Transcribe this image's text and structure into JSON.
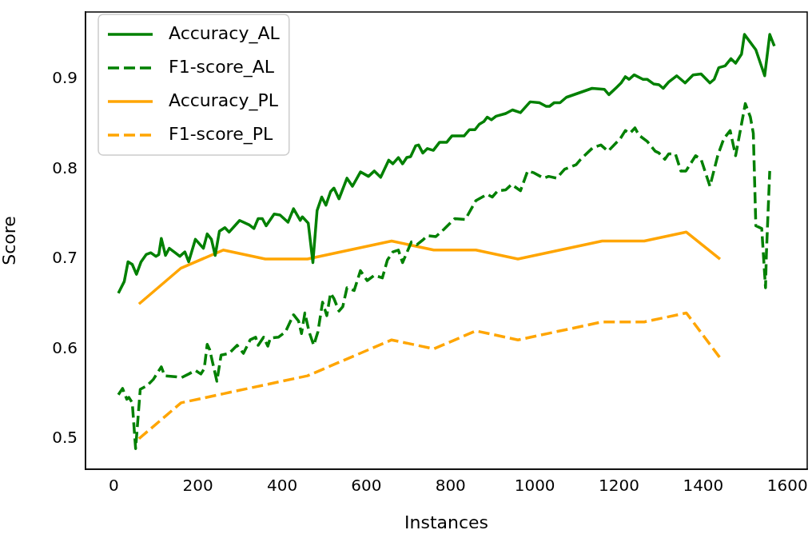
{
  "chart_data": {
    "type": "line",
    "xlabel": "Instances",
    "ylabel": "Score",
    "xlim": [
      -67,
      1647
    ],
    "ylim": [
      0.466,
      0.975
    ],
    "xticks": [
      0,
      200,
      400,
      600,
      800,
      1000,
      1200,
      1400,
      1600
    ],
    "yticks": [
      0.5,
      0.6,
      0.7,
      0.8,
      0.9
    ],
    "grid": false,
    "legend": "top left",
    "marker": "none",
    "series": [
      {
        "name": "Accuracy_AL",
        "color": "#008000",
        "line_style": "solid",
        "x": [
          11,
          25,
          34,
          44,
          54,
          65,
          77,
          88,
          100,
          107,
          113,
          123,
          132,
          146,
          157,
          169,
          178,
          194,
          213,
          222,
          232,
          241,
          251,
          264,
          274,
          299,
          322,
          333,
          343,
          353,
          362,
          381,
          395,
          414,
          427,
          443,
          448,
          462,
          473,
          483,
          494,
          504,
          515,
          523,
          535,
          554,
          567,
          586,
          605,
          619,
          634,
          653,
          663,
          676,
          686,
          696,
          705,
          717,
          724,
          734,
          745,
          759,
          774,
          791,
          803,
          832,
          845,
          858,
          868,
          879,
          887,
          897,
          908,
          931,
          947,
          966,
          989,
          1011,
          1027,
          1035,
          1046,
          1060,
          1075,
          1136,
          1165,
          1176,
          1194,
          1205,
          1215,
          1224,
          1236,
          1257,
          1267,
          1282,
          1295,
          1305,
          1318,
          1337,
          1357,
          1376,
          1395,
          1416,
          1426,
          1437,
          1452,
          1466,
          1477,
          1491,
          1498,
          1525,
          1546,
          1558,
          1569
        ],
        "values": [
          0.662,
          0.675,
          0.697,
          0.694,
          0.683,
          0.697,
          0.705,
          0.707,
          0.703,
          0.705,
          0.723,
          0.704,
          0.712,
          0.707,
          0.703,
          0.708,
          0.697,
          0.722,
          0.712,
          0.728,
          0.722,
          0.704,
          0.731,
          0.735,
          0.73,
          0.743,
          0.738,
          0.734,
          0.745,
          0.745,
          0.737,
          0.75,
          0.749,
          0.741,
          0.756,
          0.743,
          0.747,
          0.74,
          0.696,
          0.754,
          0.769,
          0.76,
          0.775,
          0.779,
          0.767,
          0.79,
          0.781,
          0.797,
          0.792,
          0.798,
          0.791,
          0.81,
          0.806,
          0.813,
          0.806,
          0.813,
          0.814,
          0.826,
          0.827,
          0.818,
          0.823,
          0.821,
          0.83,
          0.83,
          0.837,
          0.837,
          0.844,
          0.844,
          0.85,
          0.853,
          0.858,
          0.855,
          0.859,
          0.862,
          0.866,
          0.863,
          0.875,
          0.874,
          0.87,
          0.87,
          0.874,
          0.874,
          0.88,
          0.89,
          0.889,
          0.883,
          0.891,
          0.896,
          0.903,
          0.9,
          0.905,
          0.9,
          0.9,
          0.895,
          0.894,
          0.89,
          0.897,
          0.904,
          0.896,
          0.905,
          0.906,
          0.896,
          0.9,
          0.913,
          0.915,
          0.923,
          0.918,
          0.928,
          0.95,
          0.933,
          0.904,
          0.95,
          0.937
        ]
      },
      {
        "name": "F1-score_AL",
        "color": "#008000",
        "line_style": "dashed",
        "x": [
          11,
          21,
          31,
          36,
          44,
          52,
          63,
          79,
          94,
          113,
          121,
          146,
          161,
          178,
          194,
          207,
          215,
          222,
          228,
          245,
          255,
          274,
          293,
          308,
          324,
          337,
          343,
          356,
          366,
          372,
          391,
          408,
          427,
          439,
          446,
          454,
          464,
          475,
          485,
          496,
          506,
          515,
          523,
          535,
          544,
          554,
          571,
          586,
          602,
          619,
          638,
          650,
          663,
          676,
          686,
          707,
          720,
          736,
          745,
          765,
          784,
          810,
          835,
          860,
          887,
          899,
          912,
          931,
          945,
          966,
          983,
          998,
          1021,
          1033,
          1052,
          1071,
          1098,
          1109,
          1138,
          1157,
          1174,
          1203,
          1215,
          1226,
          1238,
          1247,
          1267,
          1286,
          1295,
          1309,
          1318,
          1334,
          1347,
          1359,
          1382,
          1395,
          1416,
          1435,
          1449,
          1464,
          1477,
          1500,
          1512,
          1519,
          1525,
          1539,
          1548,
          1550,
          1558
        ],
        "values": [
          0.549,
          0.556,
          0.544,
          0.546,
          0.54,
          0.489,
          0.555,
          0.559,
          0.566,
          0.58,
          0.57,
          0.569,
          0.568,
          0.572,
          0.576,
          0.572,
          0.578,
          0.605,
          0.599,
          0.564,
          0.593,
          0.595,
          0.604,
          0.595,
          0.61,
          0.613,
          0.604,
          0.613,
          0.603,
          0.612,
          0.613,
          0.619,
          0.638,
          0.631,
          0.617,
          0.64,
          0.619,
          0.604,
          0.619,
          0.652,
          0.637,
          0.662,
          0.656,
          0.642,
          0.647,
          0.668,
          0.665,
          0.687,
          0.676,
          0.682,
          0.679,
          0.699,
          0.708,
          0.71,
          0.696,
          0.719,
          0.716,
          0.722,
          0.726,
          0.725,
          0.733,
          0.745,
          0.744,
          0.765,
          0.772,
          0.769,
          0.776,
          0.777,
          0.783,
          0.776,
          0.798,
          0.796,
          0.79,
          0.792,
          0.79,
          0.8,
          0.805,
          0.811,
          0.824,
          0.827,
          0.82,
          0.834,
          0.843,
          0.84,
          0.846,
          0.838,
          0.831,
          0.82,
          0.818,
          0.811,
          0.817,
          0.817,
          0.798,
          0.798,
          0.815,
          0.811,
          0.781,
          0.816,
          0.834,
          0.843,
          0.815,
          0.873,
          0.858,
          0.84,
          0.737,
          0.734,
          0.668,
          0.705,
          0.798
        ]
      },
      {
        "name": "Accuracy_PL",
        "color": "#ffa500",
        "line_style": "solid",
        "x": [
          60,
          160,
          260,
          360,
          460,
          660,
          760,
          860,
          960,
          1160,
          1260,
          1360,
          1440
        ],
        "values": [
          0.65,
          0.69,
          0.71,
          0.7,
          0.7,
          0.72,
          0.71,
          0.71,
          0.7,
          0.72,
          0.72,
          0.73,
          0.7
        ]
      },
      {
        "name": "F1-score_PL",
        "color": "#ffa500",
        "line_style": "dashed",
        "x": [
          60,
          160,
          260,
          360,
          460,
          660,
          760,
          860,
          960,
          1160,
          1260,
          1360,
          1440
        ],
        "values": [
          0.5,
          0.54,
          0.55,
          0.56,
          0.57,
          0.61,
          0.6,
          0.62,
          0.61,
          0.63,
          0.63,
          0.64,
          0.59
        ]
      }
    ]
  }
}
